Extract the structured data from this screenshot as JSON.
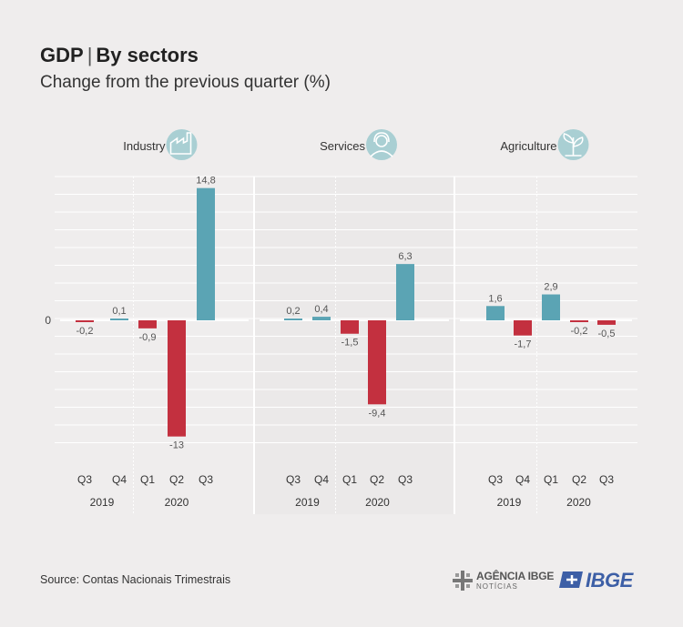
{
  "header": {
    "title_main": "GDP",
    "title_sep": "|",
    "title_rest": "By sectors",
    "subtitle": "Change from the previous quarter (%)"
  },
  "source": "Source: Contas Nacionais Trimestrais",
  "logos": {
    "agencia_line1": "AGÊNCIA IBGE",
    "agencia_line2": "NOTÍCIAS",
    "ibge": "IBGE"
  },
  "colors": {
    "positive": "#5ba4b4",
    "negative": "#c3303f",
    "icon": "#a9cfd3",
    "grid": "#ffffff",
    "background": "#efeded"
  },
  "chart_data": [
    {
      "type": "bar",
      "title": "Industry",
      "icon": "factory-icon",
      "categories": [
        "Q3",
        "Q4",
        "Q1",
        "Q2",
        "Q3"
      ],
      "years": [
        {
          "label": "2019",
          "span": [
            0,
            1
          ]
        },
        {
          "label": "2020",
          "span": [
            2,
            4
          ]
        }
      ],
      "values": [
        -0.2,
        0.1,
        -0.9,
        -13,
        14.8
      ],
      "value_labels": [
        "-0,2",
        "0,1",
        "-0,9",
        "-13",
        "14,8"
      ],
      "zero_label": "0",
      "ylim": [
        -15,
        17
      ],
      "grid": true
    },
    {
      "type": "bar",
      "title": "Services",
      "icon": "headset-person-icon",
      "categories": [
        "Q3",
        "Q4",
        "Q1",
        "Q2",
        "Q3"
      ],
      "years": [
        {
          "label": "2019",
          "span": [
            0,
            1
          ]
        },
        {
          "label": "2020",
          "span": [
            2,
            4
          ]
        }
      ],
      "values": [
        0.2,
        0.4,
        -1.5,
        -9.4,
        6.3
      ],
      "value_labels": [
        "0,2",
        "0,4",
        "-1,5",
        "-9,4",
        "6,3"
      ],
      "ylim": [
        -15,
        17
      ],
      "grid": true
    },
    {
      "type": "bar",
      "title": "Agriculture",
      "icon": "plant-icon",
      "categories": [
        "Q3",
        "Q4",
        "Q1",
        "Q2",
        "Q3"
      ],
      "years": [
        {
          "label": "2019",
          "span": [
            0,
            1
          ]
        },
        {
          "label": "2020",
          "span": [
            2,
            4
          ]
        }
      ],
      "values": [
        1.6,
        -1.7,
        2.9,
        -0.2,
        -0.5
      ],
      "value_labels": [
        "1,6",
        "-1,7",
        "2,9",
        "-0,2",
        "-0,5"
      ],
      "ylim": [
        -15,
        17
      ],
      "grid": true
    }
  ]
}
